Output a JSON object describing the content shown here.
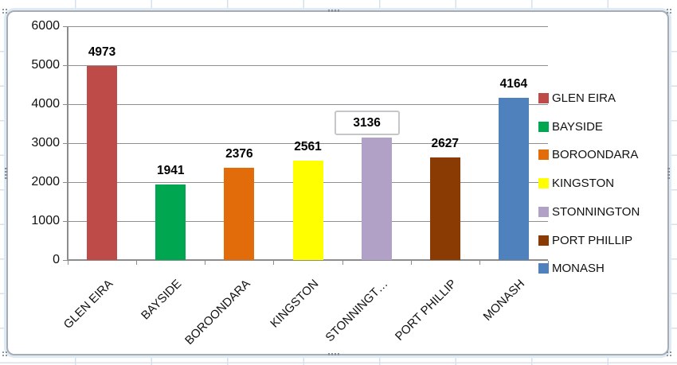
{
  "chart_data": {
    "type": "bar",
    "categories": [
      "GLEN EIRA",
      "BAYSIDE",
      "BOROONDARA",
      "KINGSTON",
      "STONNINGTON",
      "PORT PHILLIP",
      "MONASH"
    ],
    "values": [
      4973,
      1941,
      2376,
      2561,
      3136,
      2627,
      4164
    ],
    "bar_colors": [
      "#BE4B48",
      "#00A650",
      "#E36C0A",
      "#FFFF00",
      "#B2A1C7",
      "#8A3B04",
      "#4F81BD"
    ],
    "x_axis_display": [
      "GLEN EIRA",
      "BAYSIDE",
      "BOROONDARA",
      "KINGSTON",
      "STONNINGT…",
      "PORT PHILLIP",
      "MONASH"
    ],
    "data_labels": {
      "visible": true,
      "values": [
        "4973",
        "1941",
        "2376",
        "2561",
        "3136",
        "2627",
        "4164"
      ],
      "selected_index": 4
    },
    "y_axis": {
      "min": 0,
      "max": 6000,
      "step": 1000,
      "tick_labels": [
        "0",
        "1000",
        "2000",
        "3000",
        "4000",
        "5000",
        "6000"
      ]
    },
    "legend": {
      "position": "right",
      "entries": [
        {
          "label": "GLEN EIRA",
          "color": "#BE4B48"
        },
        {
          "label": "BAYSIDE",
          "color": "#00A650"
        },
        {
          "label": "BOROONDARA",
          "color": "#E36C0A"
        },
        {
          "label": "KINGSTON",
          "color": "#FFFF00"
        },
        {
          "label": "STONNINGTON",
          "color": "#B2A1C7"
        },
        {
          "label": "PORT PHILLIP",
          "color": "#8A3B04"
        },
        {
          "label": "MONASH",
          "color": "#4F81BD"
        }
      ]
    },
    "grid": true,
    "ylim": [
      0,
      6000
    ]
  },
  "ui": {
    "chart_selected": true,
    "gridline_color": "#8F8F8F",
    "axis_color": "#8C8C8C",
    "chart_border_color": "#A8ADB4",
    "sheet_gridline_color": "#D7E1EC",
    "selected_label_box_border": "#C4C7CA",
    "handle_dot_color": "#878E98"
  }
}
